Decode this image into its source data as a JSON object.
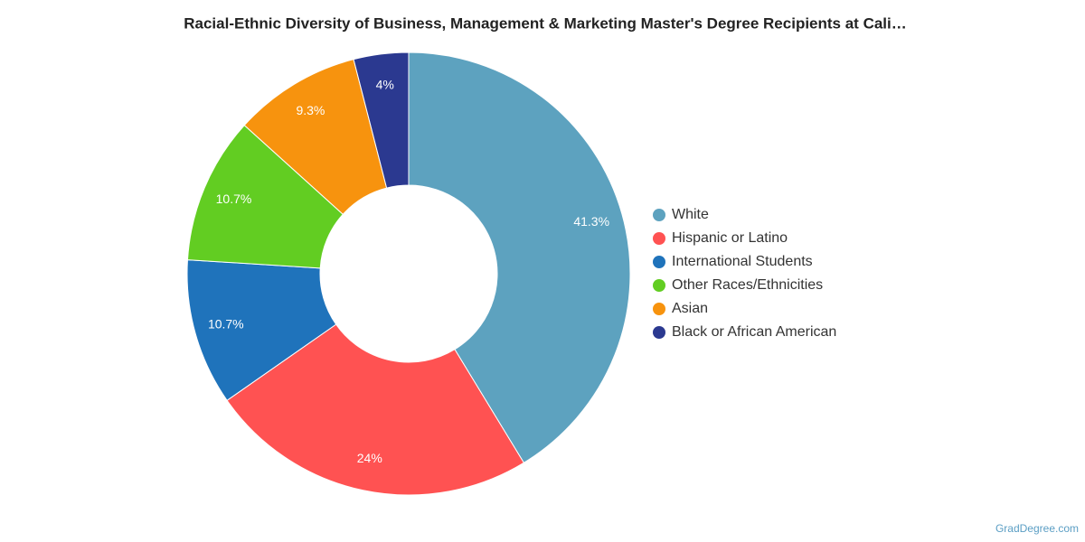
{
  "chart_data": {
    "type": "donut",
    "title": "Racial-Ethnic Diversity of Business, Management & Marketing Master's Degree Recipients at Cali…",
    "categories": [
      "White",
      "Hispanic or Latino",
      "International Students",
      "Other Races/Ethnicities",
      "Asian",
      "Black or African American"
    ],
    "values": [
      41.3,
      24,
      10.7,
      10.7,
      9.3,
      4
    ],
    "value_labels": [
      "41.3%",
      "24%",
      "10.7%",
      "10.7%",
      "9.3%",
      "4%"
    ],
    "colors": [
      "#5da2bf",
      "#ff5252",
      "#1f73bb",
      "#62cd22",
      "#f7930e",
      "#2b3990"
    ],
    "legend": "right",
    "source": "GradDegree.com"
  }
}
